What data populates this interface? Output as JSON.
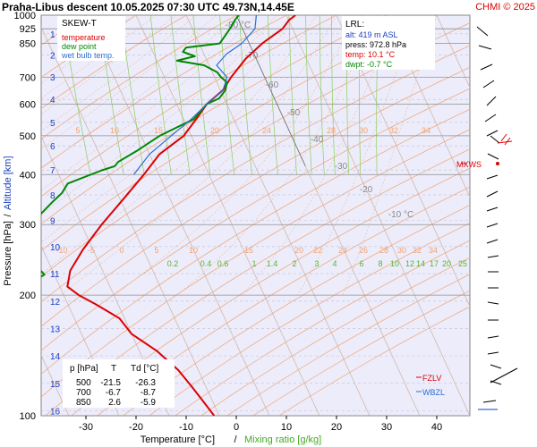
{
  "header": {
    "title": "Praha-Libus   descent   10.05.2025 07:30 UTC   49.73N,14.45E",
    "copyright": "CHMI © 2025"
  },
  "legend": {
    "title": "SKEW-T",
    "items": [
      {
        "label": "temperature",
        "color": "#dd0000"
      },
      {
        "label": "dew point",
        "color": "#008800"
      },
      {
        "label": "wet bulb temp.",
        "color": "#2a6fd0"
      }
    ]
  },
  "lrl": {
    "title": "LRL:",
    "alt": "alt: 419 m ASL",
    "press": "press: 972.8 hPa",
    "temp": "temp: 10.1 °C",
    "dwpt": "dwpt: -0.7 °C"
  },
  "table": {
    "header": [
      "p [hPa]",
      "T",
      "Td [°C]"
    ],
    "rows": [
      [
        "500",
        "-21.5",
        "-26.3"
      ],
      [
        "700",
        "-6.7",
        "-8.7"
      ],
      [
        "850",
        "2.6",
        "-5.9"
      ]
    ]
  },
  "levels": {
    "mxws": "MXWS",
    "fzlv": "FZLV",
    "wbzl": "WBZL"
  },
  "axes": {
    "y_label_a": "Pressure [hPa]",
    "y_label_sep": "/",
    "y_label_b": "Altitude [km]",
    "x_label_a": "Temperature [°C]",
    "x_label_sep": "/",
    "x_label_b": "Mixing ratio [g/kg]"
  },
  "chart_data": {
    "type": "line",
    "title": "Praha-Libus descent 10.05.2025 07:30 UTC 49.73N,14.45E",
    "xlabel": "Temperature [°C] / Mixing ratio [g/kg]",
    "ylabel": "Pressure [hPa] / Altitude [km]",
    "y_scale": "log",
    "x_ticks": [
      -30,
      -20,
      -10,
      0,
      10,
      20,
      30,
      40
    ],
    "p_ticks": [
      100,
      200,
      300,
      400,
      500,
      600,
      700,
      850,
      925,
      1000
    ],
    "alt_ticks": [
      1,
      2,
      3,
      4,
      5,
      6,
      7,
      8,
      9,
      10,
      11,
      12,
      13,
      14,
      15,
      16
    ],
    "mixing_ratio_labels": [
      "0.2",
      "0.4",
      "0.6",
      "1",
      "1.4",
      "2",
      "3",
      "4",
      "6",
      "8",
      "10",
      "12",
      "14",
      "17",
      "20",
      "25"
    ],
    "theta_labels_upper": [
      "5",
      "10",
      "15",
      "20",
      "24",
      "28",
      "30",
      "32",
      "34"
    ],
    "theta_labels_lower": [
      "-10",
      "-5",
      "0",
      "5",
      "10",
      "15",
      "20",
      "22",
      "24",
      "26",
      "28",
      "30",
      "32",
      "34"
    ],
    "isotherm_labels": [
      "-80 °C",
      "-70",
      "-60",
      "-50",
      "-40",
      "-30",
      "-20",
      "-10 °C"
    ],
    "series": [
      {
        "name": "temperature",
        "points": [
          [
            1000,
            11.8
          ],
          [
            972.8,
            10.1
          ],
          [
            925,
            8.0
          ],
          [
            850,
            2.6
          ],
          [
            780,
            -2.0
          ],
          [
            700,
            -6.7
          ],
          [
            650,
            -9.5
          ],
          [
            600,
            -14.0
          ],
          [
            550,
            -17.5
          ],
          [
            500,
            -21.5
          ],
          [
            450,
            -28.0
          ],
          [
            400,
            -33.0
          ],
          [
            350,
            -39.0
          ],
          [
            300,
            -46.0
          ],
          [
            260,
            -52.0
          ],
          [
            230,
            -56.5
          ],
          [
            210,
            -58.5
          ],
          [
            200,
            -57.0
          ],
          [
            190,
            -54.5
          ],
          [
            175,
            -51.0
          ],
          [
            160,
            -50.0
          ],
          [
            145,
            -46.5
          ],
          [
            130,
            -44.0
          ],
          [
            120,
            -43.0
          ],
          [
            110,
            -42.0
          ],
          [
            100,
            -41.0
          ]
        ]
      },
      {
        "name": "dew point",
        "points": [
          [
            1000,
            0.5
          ],
          [
            972.8,
            -0.7
          ],
          [
            925,
            -2.5
          ],
          [
            880,
            -4.5
          ],
          [
            850,
            -5.9
          ],
          [
            830,
            -13.0
          ],
          [
            810,
            -14.0
          ],
          [
            790,
            -12.0
          ],
          [
            770,
            -16.0
          ],
          [
            750,
            -11.0
          ],
          [
            720,
            -9.0
          ],
          [
            700,
            -8.7
          ],
          [
            680,
            -8.0
          ],
          [
            650,
            -9.0
          ],
          [
            620,
            -11.0
          ],
          [
            600,
            -14.0
          ],
          [
            550,
            -18.0
          ],
          [
            500,
            -26.3
          ],
          [
            460,
            -32.0
          ],
          [
            430,
            -37.0
          ],
          [
            420,
            -38.0
          ],
          [
            410,
            -41.0
          ],
          [
            380,
            -49.0
          ],
          [
            360,
            -51.0
          ],
          [
            340,
            -54.0
          ],
          [
            320,
            -57.0
          ],
          [
            300,
            -59.5
          ],
          [
            280,
            -60.0
          ],
          [
            260,
            -62.0
          ],
          [
            240,
            -63.0
          ],
          [
            225,
            -62.0
          ],
          [
            210,
            -67.0
          ],
          [
            200,
            -72.0
          ],
          [
            190,
            -76.0
          ],
          [
            175,
            -79.0
          ],
          [
            160,
            -82.0
          ],
          [
            145,
            -84.0
          ],
          [
            130,
            -84.0
          ],
          [
            115,
            -83.5
          ],
          [
            100,
            -83.0
          ]
        ]
      },
      {
        "name": "wet bulb temp.",
        "points": [
          [
            1000,
            4.0
          ],
          [
            925,
            2.5
          ],
          [
            850,
            -1.5
          ],
          [
            800,
            -5.5
          ],
          [
            750,
            -8.5
          ],
          [
            700,
            -7.5
          ],
          [
            650,
            -9.5
          ],
          [
            600,
            -14.0
          ],
          [
            550,
            -18.5
          ],
          [
            500,
            -24.0
          ],
          [
            450,
            -30.0
          ],
          [
            400,
            -35.0
          ]
        ]
      }
    ]
  }
}
